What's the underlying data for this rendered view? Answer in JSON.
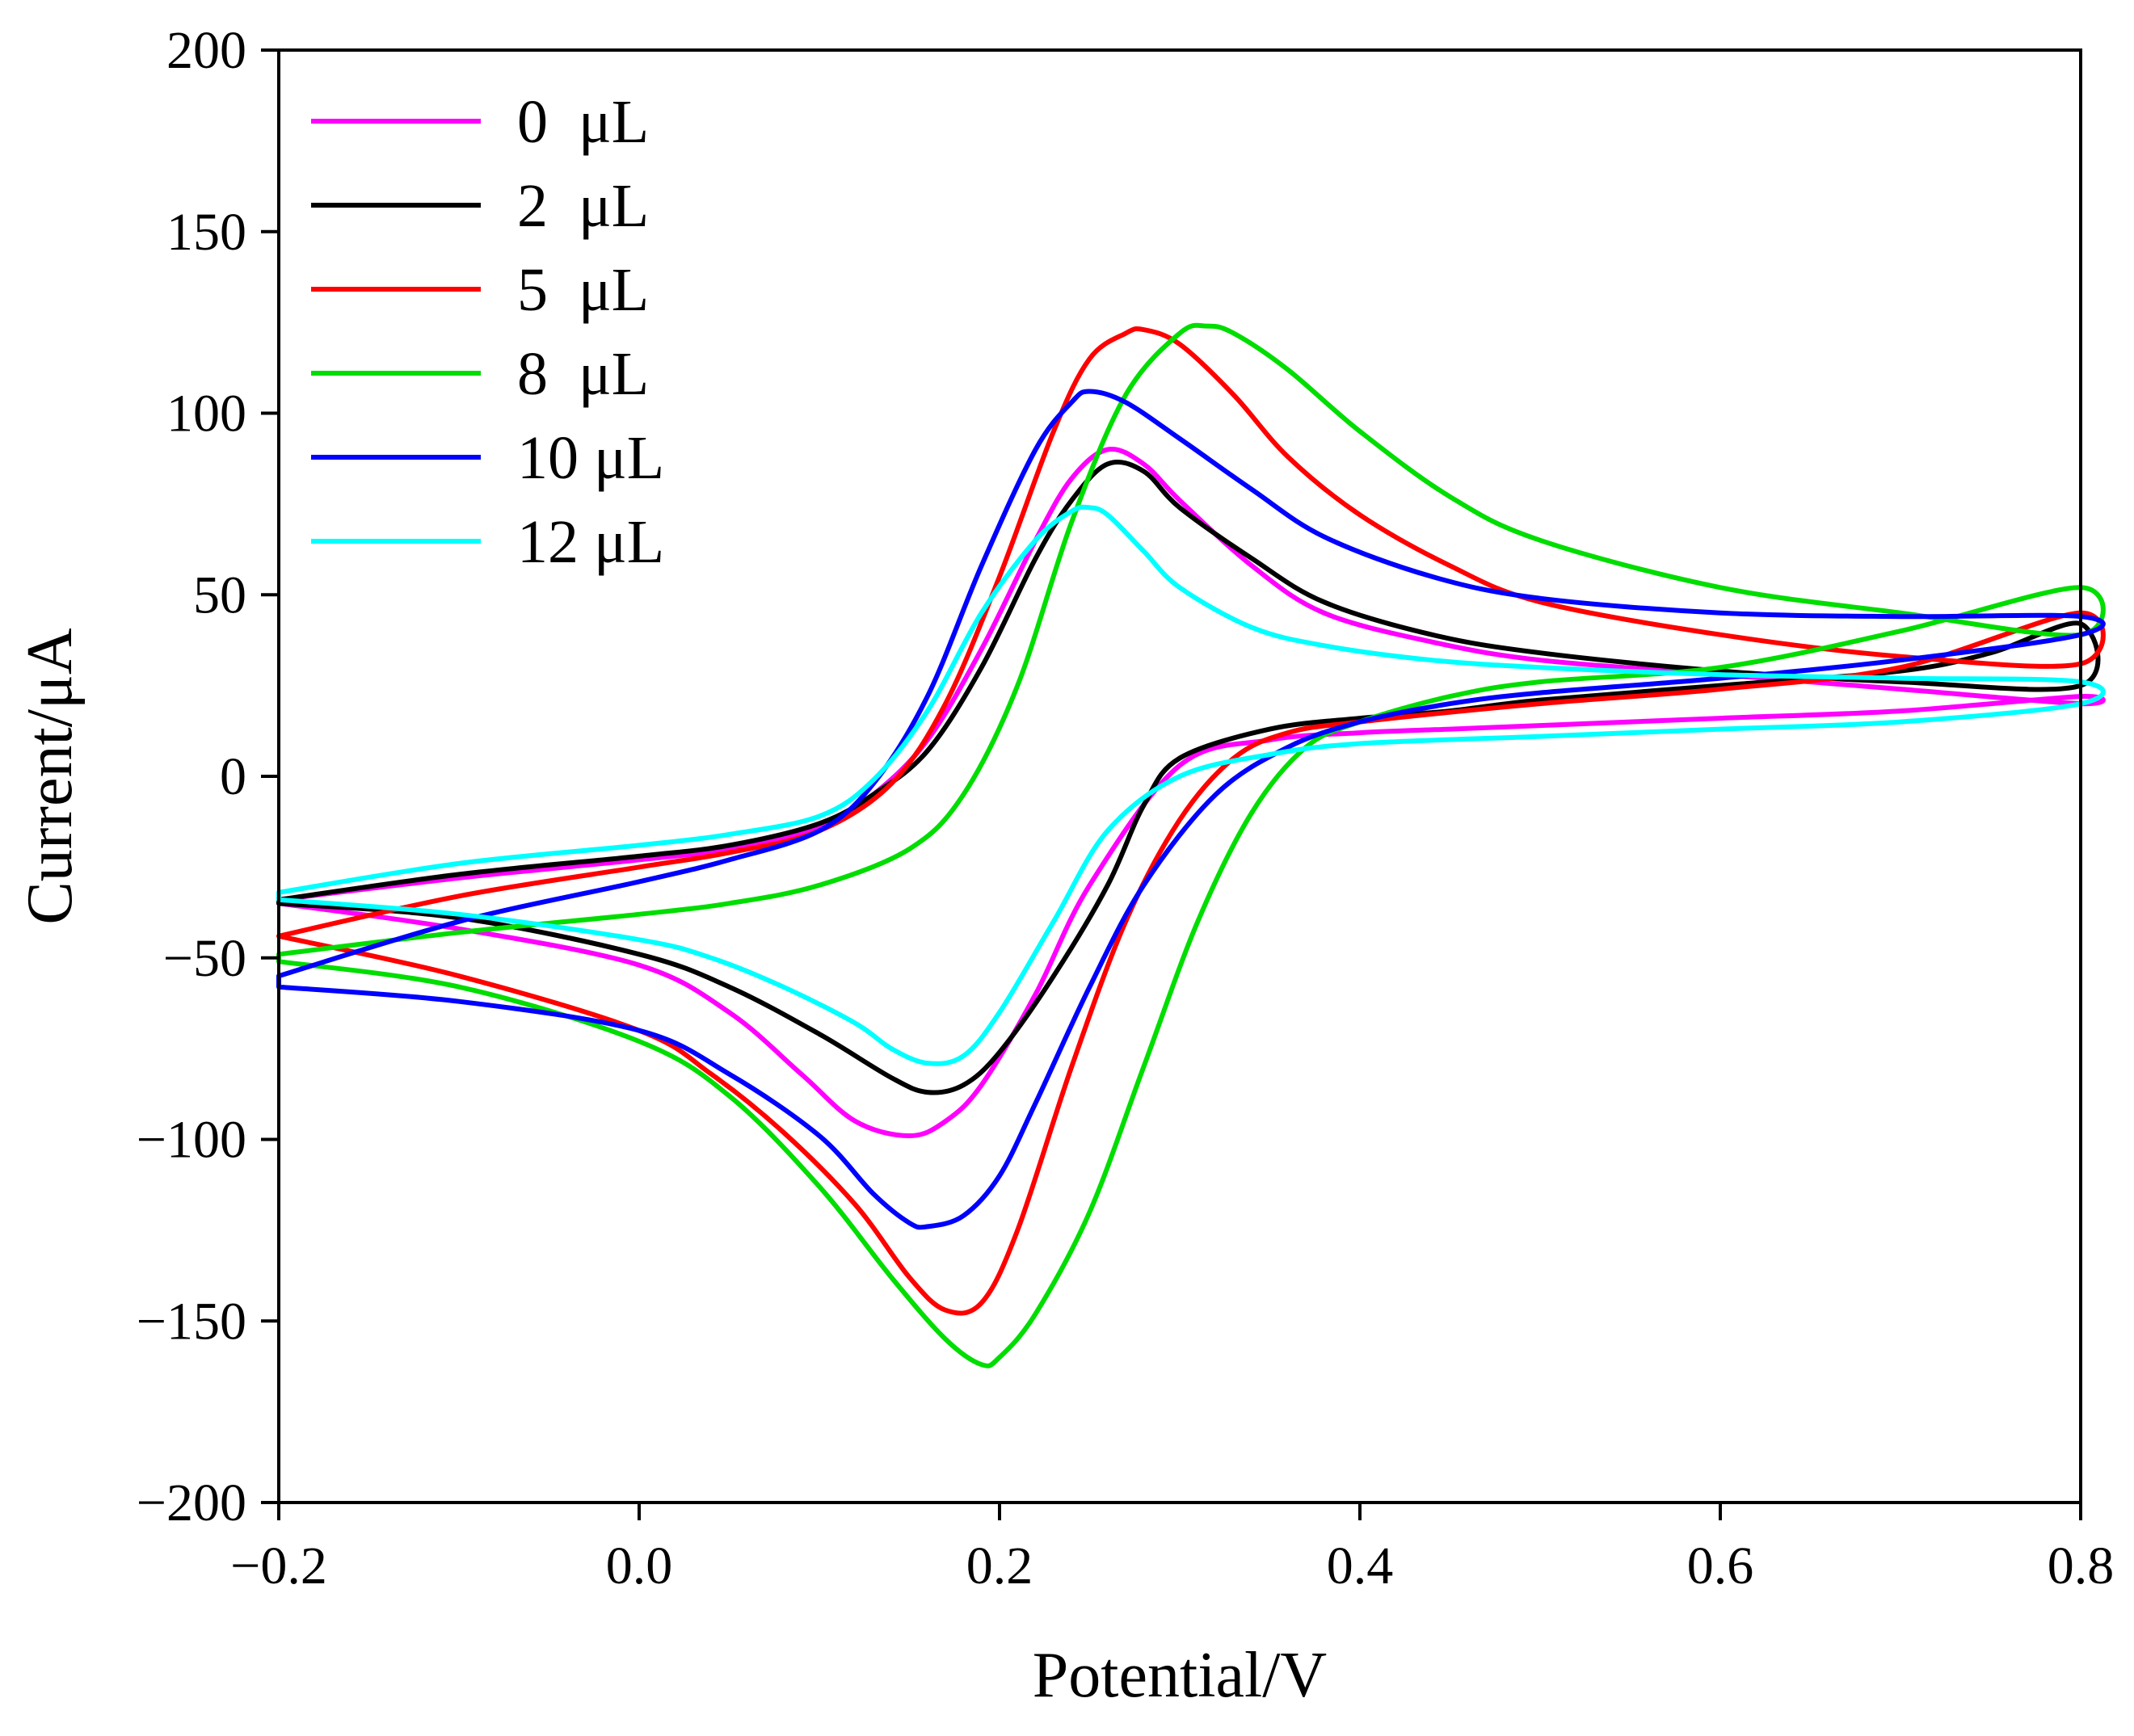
{
  "chart_data": {
    "type": "line",
    "title": "",
    "xlabel": "Potential/V",
    "ylabel": "Current/μA",
    "xlim": [
      -0.2,
      0.8
    ],
    "ylim": [
      -200,
      200
    ],
    "xticks": [
      -0.2,
      0.0,
      0.2,
      0.4,
      0.6,
      0.8
    ],
    "xtick_labels": [
      "−0.2",
      "0.0",
      "0.2",
      "0.4",
      "0.6",
      "0.8"
    ],
    "yticks": [
      -200,
      -150,
      -100,
      -50,
      0,
      50,
      100,
      150,
      200
    ],
    "ytick_labels": [
      "−200",
      "−150",
      "−100",
      "−50",
      "0",
      "50",
      "100",
      "150",
      "200"
    ],
    "grid": false,
    "legend_position": "top-left",
    "series": [
      {
        "name": "0  μL",
        "color": "#ff00ff",
        "x": [
          -0.2,
          -0.1,
          0.0,
          0.05,
          0.1,
          0.13,
          0.16,
          0.19,
          0.22,
          0.24,
          0.26,
          0.28,
          0.3,
          0.34,
          0.38,
          0.44,
          0.5,
          0.6,
          0.7,
          0.8,
          0.8,
          0.7,
          0.6,
          0.5,
          0.45,
          0.4,
          0.35,
          0.3,
          0.25,
          0.22,
          0.19,
          0.17,
          0.15,
          0.12,
          0.09,
          0.05,
          0.0,
          -0.1,
          -0.2
        ],
        "y": [
          -34,
          -28,
          -23,
          -20,
          -14,
          -5,
          10,
          35,
          65,
          82,
          90,
          86,
          76,
          58,
          45,
          37,
          32,
          28,
          24,
          20,
          22,
          18,
          16,
          14,
          13,
          12,
          10,
          3,
          -30,
          -60,
          -85,
          -95,
          -99,
          -95,
          -82,
          -65,
          -52,
          -42,
          -35
        ]
      },
      {
        "name": "2  μL",
        "color": "#000000",
        "x": [
          -0.2,
          -0.1,
          0.0,
          0.05,
          0.1,
          0.13,
          0.16,
          0.19,
          0.22,
          0.24,
          0.26,
          0.28,
          0.3,
          0.34,
          0.38,
          0.44,
          0.5,
          0.6,
          0.7,
          0.8,
          0.8,
          0.75,
          0.7,
          0.6,
          0.5,
          0.45,
          0.4,
          0.35,
          0.3,
          0.28,
          0.26,
          0.23,
          0.2,
          0.18,
          0.16,
          0.14,
          0.1,
          0.05,
          0.0,
          -0.1,
          -0.2
        ],
        "y": [
          -34,
          -27,
          -22,
          -19,
          -13,
          -5,
          7,
          30,
          60,
          76,
          86,
          84,
          74,
          60,
          48,
          39,
          34,
          29,
          26,
          25,
          42,
          34,
          29,
          25,
          21,
          18,
          16,
          13,
          5,
          -8,
          -30,
          -55,
          -76,
          -85,
          -87,
          -83,
          -71,
          -58,
          -49,
          -39,
          -35
        ]
      },
      {
        "name": "5  μL",
        "color": "#ff0000",
        "x": [
          -0.2,
          -0.1,
          0.0,
          0.05,
          0.1,
          0.14,
          0.17,
          0.2,
          0.23,
          0.25,
          0.27,
          0.28,
          0.3,
          0.33,
          0.36,
          0.4,
          0.45,
          0.5,
          0.6,
          0.7,
          0.8,
          0.8,
          0.7,
          0.6,
          0.5,
          0.4,
          0.36,
          0.33,
          0.3,
          0.27,
          0.24,
          0.21,
          0.19,
          0.17,
          0.15,
          0.12,
          0.08,
          0.04,
          0.0,
          -0.1,
          -0.2
        ],
        "y": [
          -44,
          -33,
          -25,
          -21,
          -15,
          -2,
          20,
          55,
          95,
          115,
          122,
          123,
          119,
          105,
          88,
          72,
          58,
          48,
          39,
          33,
          31,
          45,
          30,
          24,
          20,
          15,
          12,
          5,
          -12,
          -40,
          -80,
          -125,
          -145,
          -147,
          -138,
          -118,
          -98,
          -82,
          -70,
          -55,
          -44
        ]
      },
      {
        "name": "8  μL",
        "color": "#00dd00",
        "x": [
          -0.2,
          -0.1,
          0.0,
          0.05,
          0.1,
          0.15,
          0.18,
          0.21,
          0.24,
          0.27,
          0.3,
          0.315,
          0.33,
          0.36,
          0.4,
          0.45,
          0.5,
          0.6,
          0.7,
          0.8,
          0.8,
          0.7,
          0.6,
          0.5,
          0.45,
          0.4,
          0.37,
          0.34,
          0.31,
          0.28,
          0.25,
          0.22,
          0.2,
          0.19,
          0.17,
          0.14,
          0.1,
          0.05,
          0.0,
          -0.1,
          -0.2
        ],
        "y": [
          -49,
          -43,
          -38,
          -35,
          -30,
          -20,
          -5,
          25,
          70,
          105,
          122,
          124,
          122,
          112,
          95,
          77,
          65,
          52,
          45,
          39,
          52,
          40,
          30,
          26,
          22,
          15,
          8,
          -10,
          -40,
          -80,
          -120,
          -148,
          -160,
          -162,
          -155,
          -138,
          -113,
          -88,
          -73,
          -58,
          -51
        ]
      },
      {
        "name": "10 μL",
        "color": "#0000ff",
        "x": [
          -0.2,
          -0.1,
          0.0,
          0.05,
          0.1,
          0.13,
          0.16,
          0.19,
          0.22,
          0.24,
          0.25,
          0.27,
          0.3,
          0.34,
          0.38,
          0.44,
          0.5,
          0.6,
          0.7,
          0.8,
          0.8,
          0.7,
          0.6,
          0.5,
          0.45,
          0.4,
          0.36,
          0.32,
          0.28,
          0.25,
          0.22,
          0.2,
          0.18,
          0.16,
          0.15,
          0.13,
          0.1,
          0.05,
          0.0,
          -0.1,
          -0.2
        ],
        "y": [
          -55,
          -40,
          -29,
          -23,
          -15,
          -2,
          22,
          58,
          90,
          103,
          106,
          103,
          93,
          79,
          66,
          55,
          49,
          45,
          44,
          44,
          39,
          32,
          27,
          23,
          20,
          15,
          8,
          -5,
          -30,
          -58,
          -90,
          -110,
          -121,
          -124,
          -123,
          -115,
          -99,
          -82,
          -70,
          -62,
          -58
        ]
      },
      {
        "name": "12 μL",
        "color": "#00ffff",
        "x": [
          -0.2,
          -0.1,
          0.0,
          0.05,
          0.1,
          0.13,
          0.16,
          0.19,
          0.22,
          0.24,
          0.25,
          0.26,
          0.28,
          0.3,
          0.34,
          0.38,
          0.44,
          0.5,
          0.6,
          0.7,
          0.8,
          0.8,
          0.7,
          0.6,
          0.5,
          0.4,
          0.35,
          0.3,
          0.26,
          0.23,
          0.2,
          0.18,
          0.16,
          0.14,
          0.12,
          0.08,
          0.04,
          0.0,
          -0.1,
          -0.2
        ],
        "y": [
          -32,
          -24,
          -19,
          -16,
          -11,
          -1,
          18,
          45,
          65,
          73,
          74,
          72,
          62,
          52,
          41,
          36,
          32,
          30,
          28,
          27,
          26,
          20,
          15,
          13,
          11,
          9,
          6,
          0,
          -15,
          -40,
          -65,
          -77,
          -79,
          -75,
          -68,
          -58,
          -50,
          -45,
          -38,
          -34
        ]
      }
    ]
  }
}
